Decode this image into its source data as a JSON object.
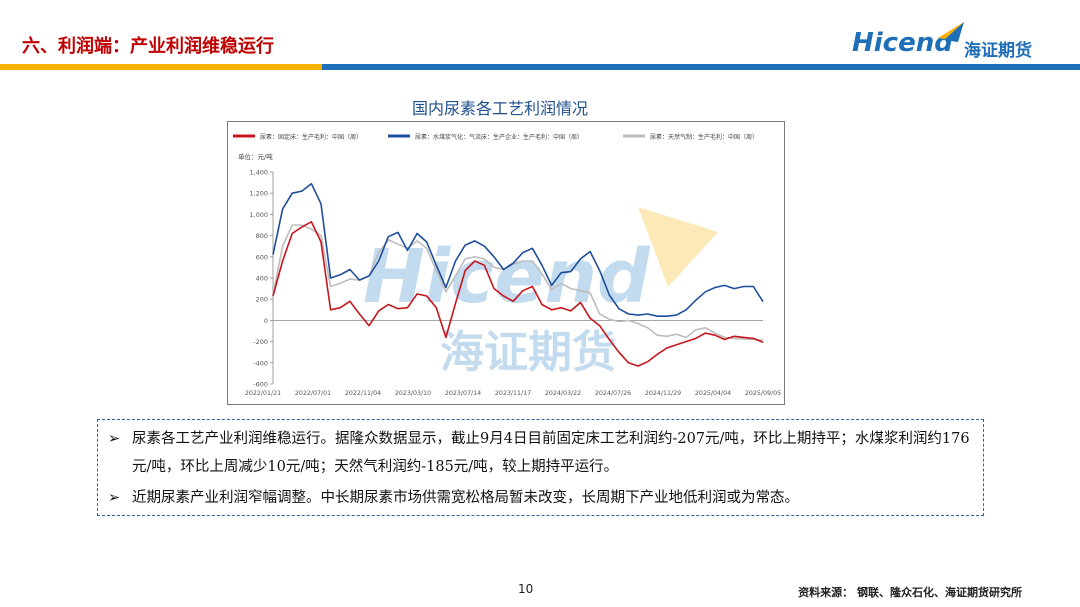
{
  "header": {
    "title": "六、利润端：产业利润维稳运行",
    "logo_text": "Hicend",
    "logo_cn": "海证期货"
  },
  "colors": {
    "title_red": "#c00000",
    "bar_orange": "#f6b100",
    "bar_blue": "#1f6fb8",
    "series_fixed_bed": "#c8161d",
    "series_coal_water": "#1f4e9c",
    "series_natural_gas": "#bdbdbd"
  },
  "chart_data": {
    "type": "line",
    "title": "国内尿素各工艺利润情况",
    "ylabel": "单位：元/吨",
    "ylim": [
      -600,
      1400
    ],
    "yticks": [
      "1,400",
      "1,200",
      "1,000",
      "800",
      "600",
      "400",
      "200",
      "0",
      "-200",
      "-400",
      "-600"
    ],
    "xticks": [
      "2022/01/21",
      "2022/07/01",
      "2022/11/04",
      "2023/03/10",
      "2023/07/14",
      "2023/11/17",
      "2024/03/22",
      "2024/07/26",
      "2024/11/29",
      "2025/04/04",
      "2025/09/05"
    ],
    "x": [
      "2022/01/21",
      "2022/02/18",
      "2022/03/18",
      "2022/04/15",
      "2022/05/13",
      "2022/06/10",
      "2022/07/01",
      "2022/07/29",
      "2022/08/26",
      "2022/09/23",
      "2022/10/21",
      "2022/11/04",
      "2022/12/02",
      "2022/12/30",
      "2023/01/27",
      "2023/02/24",
      "2023/03/10",
      "2023/04/07",
      "2023/05/05",
      "2023/06/02",
      "2023/06/30",
      "2023/07/14",
      "2023/08/11",
      "2023/09/08",
      "2023/10/06",
      "2023/11/03",
      "2023/11/17",
      "2023/12/15",
      "2024/01/12",
      "2024/02/09",
      "2024/03/08",
      "2024/03/22",
      "2024/04/19",
      "2024/05/17",
      "2024/06/14",
      "2024/07/12",
      "2024/07/26",
      "2024/08/23",
      "2024/09/20",
      "2024/10/18",
      "2024/11/15",
      "2024/11/29",
      "2024/12/27",
      "2025/01/24",
      "2025/02/21",
      "2025/03/21",
      "2025/04/04",
      "2025/05/02",
      "2025/05/30",
      "2025/06/27",
      "2025/07/25",
      "2025/09/05"
    ],
    "series": [
      {
        "name": "尿素：固定床：生产毛利：中国（周）",
        "values": [
          230,
          560,
          820,
          880,
          930,
          740,
          100,
          120,
          180,
          60,
          -50,
          90,
          150,
          110,
          120,
          250,
          230,
          120,
          -160,
          160,
          470,
          560,
          520,
          300,
          230,
          180,
          280,
          320,
          150,
          100,
          120,
          90,
          170,
          20,
          -50,
          -180,
          -300,
          -400,
          -430,
          -390,
          -320,
          -260,
          -230,
          -200,
          -170,
          -120,
          -140,
          -180,
          -150,
          -160,
          -170,
          -207
        ]
      },
      {
        "name": "尿素：水煤浆气化：气流床：生产企业：生产毛利：中国（周）",
        "values": [
          620,
          1050,
          1200,
          1220,
          1290,
          1100,
          400,
          430,
          480,
          380,
          420,
          560,
          790,
          830,
          660,
          820,
          740,
          520,
          310,
          560,
          710,
          750,
          700,
          600,
          480,
          540,
          640,
          680,
          520,
          330,
          450,
          460,
          580,
          650,
          470,
          240,
          110,
          60,
          50,
          60,
          40,
          40,
          50,
          100,
          190,
          270,
          310,
          330,
          300,
          320,
          320,
          176
        ]
      },
      {
        "name": "尿素：天然气制：生产毛利：中国（周）",
        "values": [
          240,
          700,
          900,
          900,
          860,
          800,
          320,
          350,
          390,
          380,
          420,
          640,
          760,
          720,
          680,
          750,
          680,
          470,
          270,
          420,
          580,
          600,
          580,
          500,
          480,
          530,
          560,
          560,
          440,
          290,
          350,
          300,
          280,
          260,
          60,
          10,
          -10,
          0,
          -30,
          -70,
          -140,
          -150,
          -130,
          -160,
          -90,
          -70,
          -120,
          -160,
          -170,
          -175,
          -180,
          -185
        ]
      }
    ]
  },
  "watermark": {
    "logo_text": "Hicend",
    "cn_text": "海证期货"
  },
  "bullets": [
    {
      "mark": "➢",
      "text": "尿素各工艺产业利润维稳运行。据隆众数据显示，截止9月4日目前固定床工艺利润约-207元/吨，环比上期持平；水煤浆利润约176元/吨，环比上周减少10元/吨；天然气利润约-185元/吨，较上期持平运行。"
    },
    {
      "mark": "➢",
      "text": "近期尿素产业利润窄幅调整。中长期尿素市场供需宽松格局暂未改变，长周期下产业地低利润或为常态。"
    }
  ],
  "footer": {
    "page_number": "10",
    "source": "资料来源：  钢联、隆众石化、海证期货研究所"
  }
}
